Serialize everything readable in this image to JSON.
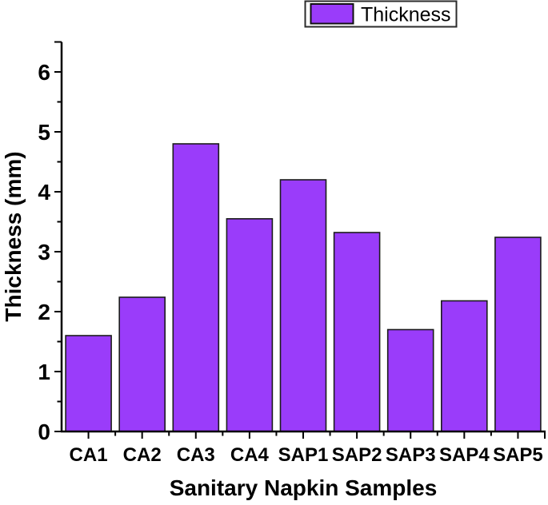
{
  "chart_data": {
    "type": "bar",
    "categories": [
      "CA1",
      "CA2",
      "CA3",
      "CA4",
      "SAP1",
      "SAP2",
      "SAP3",
      "SAP4",
      "SAP5"
    ],
    "values": [
      1.6,
      2.24,
      4.8,
      3.55,
      4.2,
      3.32,
      1.7,
      2.18,
      3.24
    ],
    "series": [
      {
        "name": "Thickness",
        "values": [
          1.6,
          2.24,
          4.8,
          3.55,
          4.2,
          3.32,
          1.7,
          2.18,
          3.24
        ]
      }
    ],
    "title": "",
    "xlabel": "Sanitary Napkin Samples",
    "ylabel": "Thickness (mm)",
    "legend_label": "Thickness",
    "legend_position": "top-center",
    "ylim": [
      0,
      6.5
    ],
    "y_major_ticks": [
      0,
      1,
      2,
      3,
      4,
      5,
      6
    ],
    "y_minor_step": 0.5,
    "grid": false,
    "colors": {
      "bar_fill": "#9a3cfa",
      "bar_stroke": "#1c1c1c",
      "axis": "#000000",
      "text": "#000000",
      "legend_border": "#2b2b2b",
      "swatch_border": "#111111",
      "background": "#ffffff"
    }
  }
}
